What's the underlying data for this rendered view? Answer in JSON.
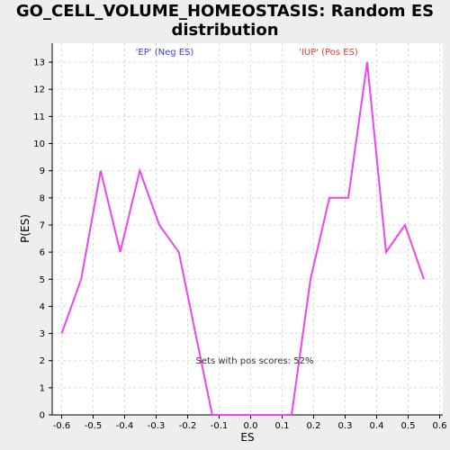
{
  "chart_data": {
    "type": "line",
    "title_lines": [
      "GO_CELL_VOLUME_HOMEOSTASIS: Random ES",
      "distribution"
    ],
    "xlabel": "ES",
    "ylabel": "P(ES)",
    "xlim": [
      -0.63,
      0.61
    ],
    "ylim": [
      0,
      13.7
    ],
    "xticks": [
      -0.6,
      -0.5,
      -0.4,
      -0.3,
      -0.2,
      -0.1,
      0.0,
      0.1,
      0.2,
      0.3,
      0.4,
      0.5,
      0.6
    ],
    "xtick_labels": [
      "-0.6",
      "-0.5",
      "-0.4",
      "-0.3",
      "-0.2",
      "-0.1",
      "0.0",
      "0.1",
      "0.2",
      "0.3",
      "0.4",
      "0.5",
      "0.6"
    ],
    "yticks": [
      0,
      1,
      2,
      3,
      4,
      5,
      6,
      7,
      8,
      9,
      10,
      11,
      12,
      13
    ],
    "ytick_labels": [
      "0",
      "1",
      "2",
      "3",
      "4",
      "5",
      "6",
      "7",
      "8",
      "9",
      "10",
      "11",
      "12",
      "13"
    ],
    "grid": true,
    "series": [
      {
        "color": "#ee44ee",
        "x": [
          -0.6,
          -0.538,
          -0.476,
          -0.414,
          -0.352,
          -0.29,
          -0.228,
          -0.122,
          -0.06,
          0.0,
          0.07,
          0.13,
          0.19,
          0.25,
          0.31,
          0.37,
          0.43,
          0.49,
          0.55
        ],
        "y": [
          3,
          5,
          9,
          6,
          9,
          7,
          6,
          0,
          0,
          0,
          0,
          0,
          5,
          8,
          8,
          13,
          6,
          7,
          5
        ]
      }
    ],
    "annotations": {
      "neg": "'EP' (Neg ES)",
      "pos": "'IUP' (Pos ES)",
      "pos_scores": "Sets with pos scores: 52%"
    }
  }
}
